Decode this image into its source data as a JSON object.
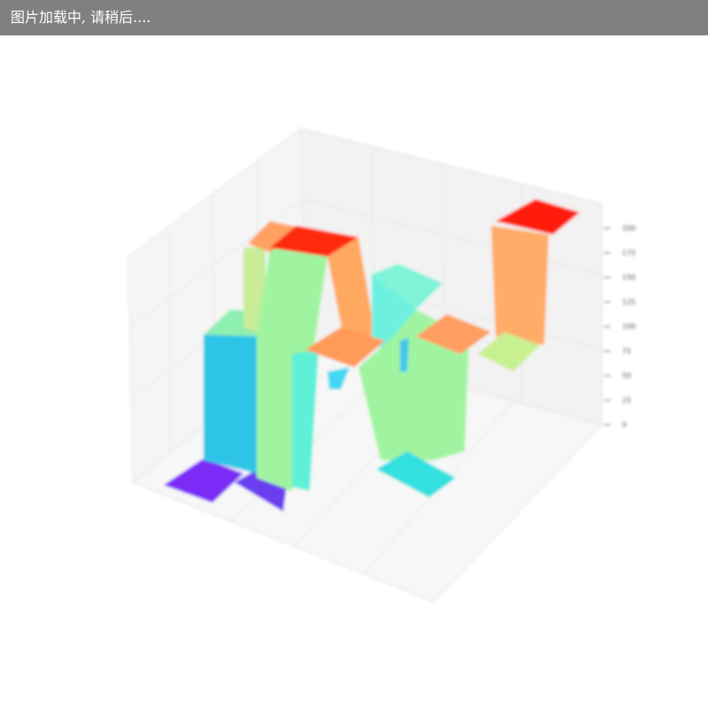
{
  "header": {
    "text": "图片加载中, 请稍后...."
  },
  "chart": {
    "zticks": [
      0,
      25,
      50,
      75,
      100,
      125,
      150,
      175,
      200
    ]
  }
}
